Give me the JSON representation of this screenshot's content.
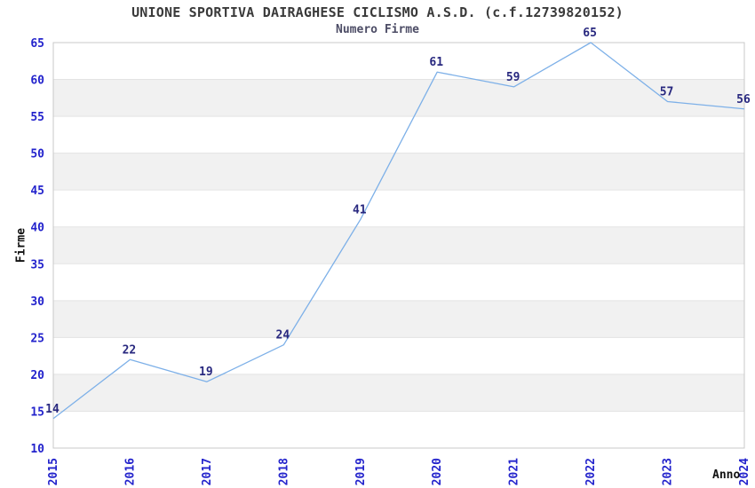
{
  "chart_data": {
    "type": "line",
    "title": "UNIONE SPORTIVA DAIRAGHESE CICLISMO A.S.D. (c.f.12739820152)",
    "subtitle": "Numero Firme",
    "xlabel": "Anno",
    "ylabel": "Firme",
    "categories": [
      "2015",
      "2016",
      "2017",
      "2018",
      "2019",
      "2020",
      "2021",
      "2022",
      "2023",
      "2024"
    ],
    "series": [
      {
        "name": "Numero Firme",
        "values": [
          14,
          22,
          19,
          24,
          41,
          61,
          59,
          65,
          57,
          56
        ]
      }
    ],
    "point_labels": [
      "14",
      "22",
      "19",
      "24",
      "41",
      "61",
      "59",
      "65",
      "57",
      "56"
    ],
    "ylim": [
      10,
      65
    ],
    "ytick_step": 5,
    "yticks": [
      10,
      15,
      20,
      25,
      30,
      35,
      40,
      45,
      50,
      55,
      60,
      65
    ],
    "grid": "alternating-horizontal-bands",
    "legend_position": "none",
    "colors": {
      "line": "#7db0e8",
      "point_label": "#28287f",
      "tick_label": "#2323cc",
      "band": "#f1f1f1",
      "gridline": "#e3e3e3",
      "frame": "#c8c8c8",
      "title": "#3a3a3a",
      "subtitle": "#4d4d66",
      "axis_title": "#111111",
      "background": "#ffffff"
    }
  }
}
